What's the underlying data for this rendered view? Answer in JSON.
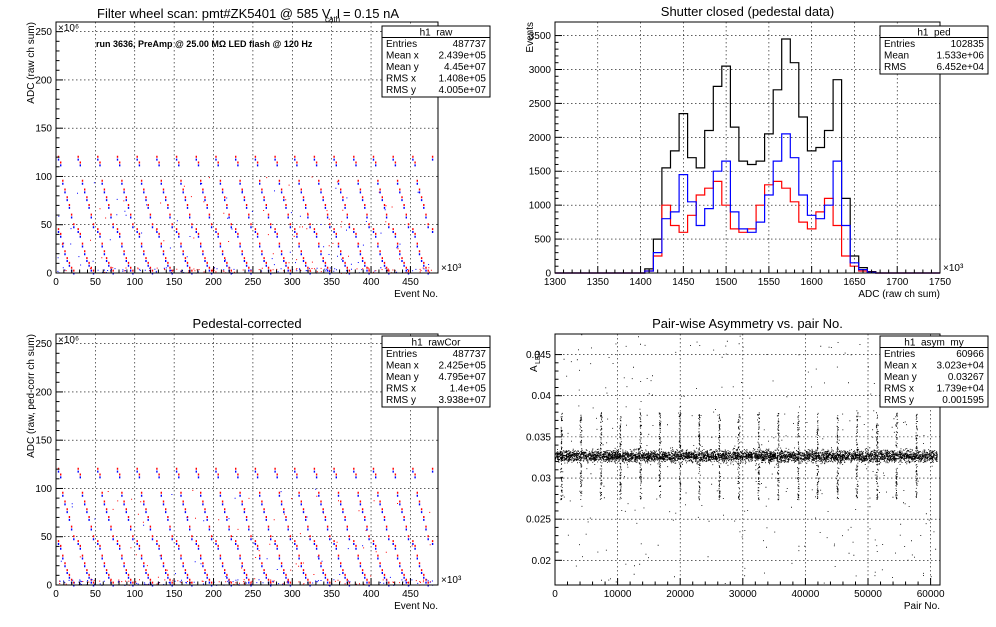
{
  "chart_data": [
    {
      "type": "scatter",
      "panel": "top-left",
      "title": "Filter wheel scan: pmt#ZK5401 @   585 V, I",
      "title_sub": "cath",
      "title_suffix": " = 0.15 nA",
      "annotation": "run 3636, PreAmp @ 25.00 MΩ LED flash @  120 Hz",
      "xlabel": "Event No.",
      "ylabel": "ADC (raw ch sum)",
      "x_exp": "×10³",
      "y_exp": "×10⁶",
      "xlim": [
        0,
        485
      ],
      "ylim": [
        0,
        260
      ],
      "xticks": [
        0,
        50,
        100,
        150,
        200,
        250,
        300,
        350,
        400,
        450
      ],
      "yticks": [
        0,
        50,
        100,
        150,
        200,
        250
      ],
      "levels": [
        120,
        114,
        95,
        86,
        78,
        70,
        60,
        50,
        45,
        40,
        30,
        22,
        15,
        10,
        5,
        2
      ],
      "period": 25,
      "x_end": 478,
      "series": [
        {
          "color": "#ff0000"
        },
        {
          "color": "#0000ff"
        }
      ],
      "stats": {
        "name": "h1_raw",
        "rows": [
          [
            "Entries",
            "487737"
          ],
          [
            "Mean x",
            "2.439e+05"
          ],
          [
            "Mean y",
            "4.45e+07"
          ],
          [
            "RMS x",
            "1.408e+05"
          ],
          [
            "RMS y",
            "4.005e+07"
          ]
        ]
      }
    },
    {
      "type": "histogram",
      "panel": "top-right",
      "title": "Shutter closed (pedestal data)",
      "xlabel": "ADC (raw ch sum)",
      "ylabel": "Events",
      "x_exp": "×10³",
      "xlim": [
        1300,
        1750
      ],
      "ylim": [
        0,
        3700
      ],
      "xticks": [
        1300,
        1350,
        1400,
        1450,
        1500,
        1550,
        1600,
        1650,
        1700,
        1750
      ],
      "yticks": [
        0,
        500,
        1000,
        1500,
        2000,
        2500,
        3000,
        3500
      ],
      "bin_edges": [
        1405,
        1415,
        1425,
        1435,
        1445,
        1455,
        1465,
        1475,
        1485,
        1495,
        1505,
        1515,
        1525,
        1535,
        1545,
        1555,
        1565,
        1575,
        1585,
        1595,
        1605,
        1615,
        1625,
        1635,
        1645,
        1655,
        1665,
        1675
      ],
      "series": [
        {
          "color": "#000000",
          "values": [
            60,
            500,
            1550,
            1800,
            2350,
            1700,
            1550,
            2100,
            2750,
            3050,
            2150,
            1650,
            1600,
            1650,
            2050,
            2700,
            3450,
            3100,
            2300,
            1800,
            1850,
            2100,
            2850,
            1100,
            250,
            80,
            20
          ]
        },
        {
          "color": "#ff0000",
          "values": [
            30,
            250,
            1000,
            700,
            600,
            850,
            1150,
            1250,
            1350,
            1000,
            650,
            600,
            650,
            1000,
            1300,
            1350,
            1250,
            1050,
            750,
            650,
            900,
            1100,
            700,
            250,
            100,
            30,
            10
          ]
        },
        {
          "color": "#0000ff",
          "values": [
            30,
            300,
            800,
            900,
            1450,
            1050,
            700,
            950,
            1500,
            1650,
            900,
            650,
            600,
            750,
            1150,
            1650,
            2050,
            1700,
            1150,
            850,
            800,
            1000,
            1650,
            700,
            150,
            50,
            10
          ]
        }
      ],
      "stats": {
        "name": "h1_ped",
        "rows": [
          [
            "Entries",
            "102835"
          ],
          [
            "Mean",
            "1.533e+06"
          ],
          [
            "RMS",
            "6.452e+04"
          ]
        ]
      }
    },
    {
      "type": "scatter",
      "panel": "bottom-left",
      "title": "Pedestal-corrected",
      "xlabel": "Event No.",
      "ylabel": "ADC (raw, ped-corr ch sum)",
      "x_exp": "×10³",
      "y_exp": "×10⁶",
      "xlim": [
        0,
        485
      ],
      "ylim": [
        0,
        260
      ],
      "xticks": [
        0,
        50,
        100,
        150,
        200,
        250,
        300,
        350,
        400,
        450
      ],
      "yticks": [
        0,
        50,
        100,
        150,
        200,
        250
      ],
      "levels": [
        120,
        114,
        95,
        86,
        78,
        70,
        60,
        50,
        45,
        40,
        30,
        22,
        15,
        10,
        5,
        2
      ],
      "period": 25,
      "x_end": 478,
      "series": [
        {
          "color": "#ff0000"
        },
        {
          "color": "#0000ff"
        }
      ],
      "stats": {
        "name": "h1_rawCor",
        "rows": [
          [
            "Entries",
            "487737"
          ],
          [
            "Mean x",
            "2.425e+05"
          ],
          [
            "Mean y",
            "4.795e+07"
          ],
          [
            "RMS x",
            "1.4e+05"
          ],
          [
            "RMS y",
            "3.938e+07"
          ]
        ]
      }
    },
    {
      "type": "scatter",
      "panel": "bottom-right",
      "title": "Pair-wise Asymmetry vs. pair No.",
      "xlabel": "Pair No.",
      "ylabel": "A",
      "ylabel_sub": "LED",
      "xlim": [
        0,
        61500
      ],
      "ylim": [
        0.017,
        0.0475
      ],
      "xticks": [
        0,
        10000,
        20000,
        30000,
        40000,
        50000,
        60000
      ],
      "yticks": [
        0.02,
        0.025,
        0.03,
        0.035,
        0.04,
        0.045
      ],
      "band_center": 0.0327,
      "band_halfwidth": 0.0007,
      "x_end": 61000,
      "spikes": [
        1000,
        4100,
        7300,
        10400,
        13600,
        16700,
        19900,
        23000,
        26200,
        29300,
        32500,
        35600,
        38800,
        41900,
        45100,
        48200,
        51400,
        54500,
        57700
      ],
      "series": [
        {
          "color": "#000000"
        }
      ],
      "stats": {
        "name": "h1_asym_my",
        "rows": [
          [
            "Entries",
            "60966"
          ],
          [
            "Mean x",
            "3.023e+04"
          ],
          [
            "Mean y",
            "0.03267"
          ],
          [
            "RMS x",
            "1.739e+04"
          ],
          [
            "RMS y",
            "0.001595"
          ]
        ]
      }
    }
  ]
}
